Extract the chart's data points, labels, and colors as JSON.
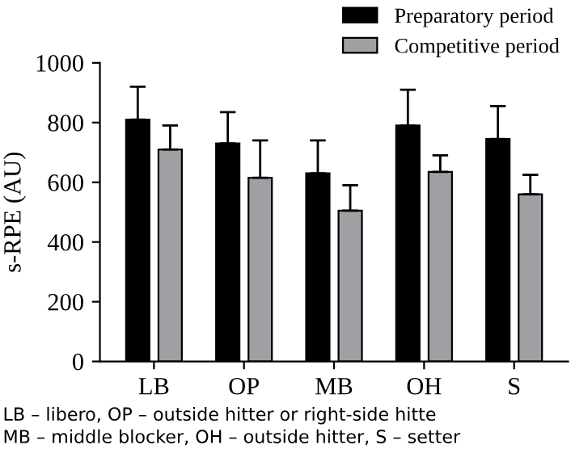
{
  "chart_data": {
    "type": "bar",
    "ylabel": "s-RPE (AU)",
    "categories": [
      "LB",
      "OP",
      "MB",
      "OH",
      "S"
    ],
    "series": [
      {
        "name": "Preparatory period",
        "color": "#000000",
        "values": [
          810,
          730,
          630,
          790,
          745
        ],
        "errors": [
          [
            810,
            920
          ],
          [
            730,
            835
          ],
          [
            630,
            740
          ],
          [
            790,
            910
          ],
          [
            745,
            855
          ]
        ]
      },
      {
        "name": "Competitive period",
        "color": "#a0a0a4",
        "values": [
          710,
          615,
          505,
          635,
          560
        ],
        "errors": [
          [
            710,
            790
          ],
          [
            615,
            740
          ],
          [
            505,
            590
          ],
          [
            635,
            690
          ],
          [
            560,
            625
          ]
        ]
      }
    ],
    "ylim": [
      0,
      1000
    ],
    "yticks": [
      0,
      200,
      400,
      600,
      800,
      1000
    ],
    "grid": false,
    "legend": "top right",
    "annotations": [
      "LB – libero, OP – outside hitter or right-side hitte",
      "MB – middle blocker, OH – outside hitter, S – setter"
    ]
  }
}
